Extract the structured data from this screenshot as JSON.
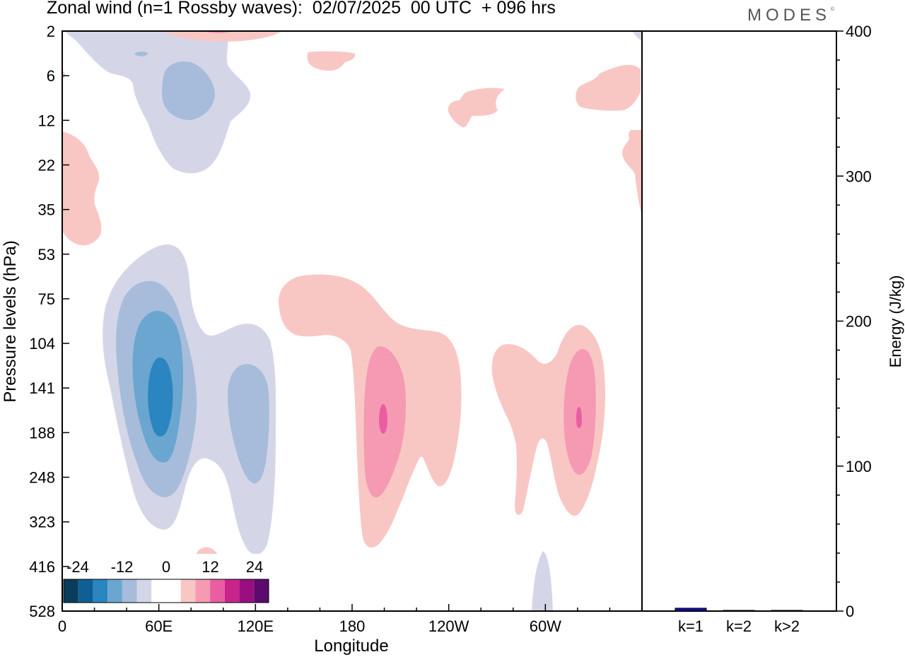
{
  "title": "Zonal wind (n=1 Rossby waves):  02/07/2025  00 UTC  + 096 hrs",
  "logo": "MODES",
  "logo_mark": "©",
  "chart_data": [
    {
      "type": "heatmap",
      "variable": "Zonal wind (n=1 Rossby waves)",
      "xlabel": "Longitude",
      "ylabel": "Pressure levels (hPa)",
      "x_ticks": [
        "0",
        "60E",
        "120E",
        "180",
        "120W",
        "60W"
      ],
      "x_tick_values": [
        0,
        60,
        120,
        180,
        240,
        300
      ],
      "xlim": [
        0,
        360
      ],
      "y_ticks": [
        2,
        6,
        12,
        22,
        35,
        53,
        75,
        104,
        141,
        188,
        248,
        323,
        416,
        528
      ],
      "y_scale": "categorical pressure levels",
      "colorbar": {
        "tick_labels": [
          "-24",
          "-12",
          "0",
          "12",
          "24"
        ],
        "colors": [
          "#0a3d5c",
          "#0f5f94",
          "#2a85c0",
          "#6aa6cf",
          "#a6bcda",
          "#d4d6e8",
          "#ffffff",
          "#ffffff",
          "#f8c7c4",
          "#f59ab2",
          "#ea5ea1",
          "#c9248b",
          "#9a0f80",
          "#5c0a6e"
        ],
        "position": "bottom-left"
      },
      "features": [
        {
          "sign": "negative",
          "center_lon": 60,
          "center_level": 141,
          "min_level": "-16"
        },
        {
          "sign": "negative",
          "center_lon": 120,
          "center_level": 188,
          "min_level": "-8"
        },
        {
          "sign": "negative",
          "center_lon": 60,
          "center_level": 6,
          "min_level": "-8"
        },
        {
          "sign": "positive",
          "center_lon": 200,
          "center_level": 188,
          "max_level": "12"
        },
        {
          "sign": "positive",
          "center_lon": 322,
          "center_level": 188,
          "max_level": "12"
        },
        {
          "sign": "positive",
          "center_lon": 10,
          "center_level": 22,
          "max_level": "4"
        }
      ]
    },
    {
      "type": "bar",
      "title": "",
      "categories": [
        "k=1",
        "k=2",
        "k>2"
      ],
      "values": [
        2,
        0.5,
        0.5
      ],
      "ylabel": "Energy (J/kg)",
      "ylim": [
        0,
        400
      ],
      "y_ticks": [
        0,
        100,
        200,
        300,
        400
      ],
      "bar_color": "#1010a0"
    }
  ]
}
